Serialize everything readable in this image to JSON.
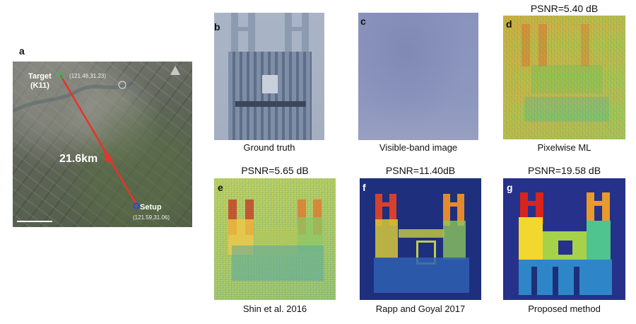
{
  "panels": {
    "a": {
      "letter": "a",
      "target_label": "Target\n(K11)",
      "target_coord": "(121.48,31.23)",
      "setup_label": "Setup",
      "setup_coord": "(121.59,31.06)",
      "distance": "21.6km"
    },
    "b": {
      "letter": "b",
      "caption": "Ground truth"
    },
    "c": {
      "letter": "c",
      "caption": "Visible-band image"
    },
    "d": {
      "letter": "d",
      "caption": "Pixelwise ML",
      "psnr": "PSNR=5.40 dB"
    },
    "e": {
      "letter": "e",
      "caption": "Shin et al. 2016",
      "psnr": "PSNR=5.65 dB"
    },
    "f": {
      "letter": "f",
      "caption": "Rapp and Goyal 2017",
      "psnr": "PSNR=11.40dB"
    },
    "g": {
      "letter": "g",
      "caption": "Proposed method",
      "psnr": "PSNR=19.58 dB"
    }
  },
  "colors": {
    "route_line": "#e8322a",
    "marker_green": "#22c25a",
    "marker_blue": "#2a3cff"
  }
}
